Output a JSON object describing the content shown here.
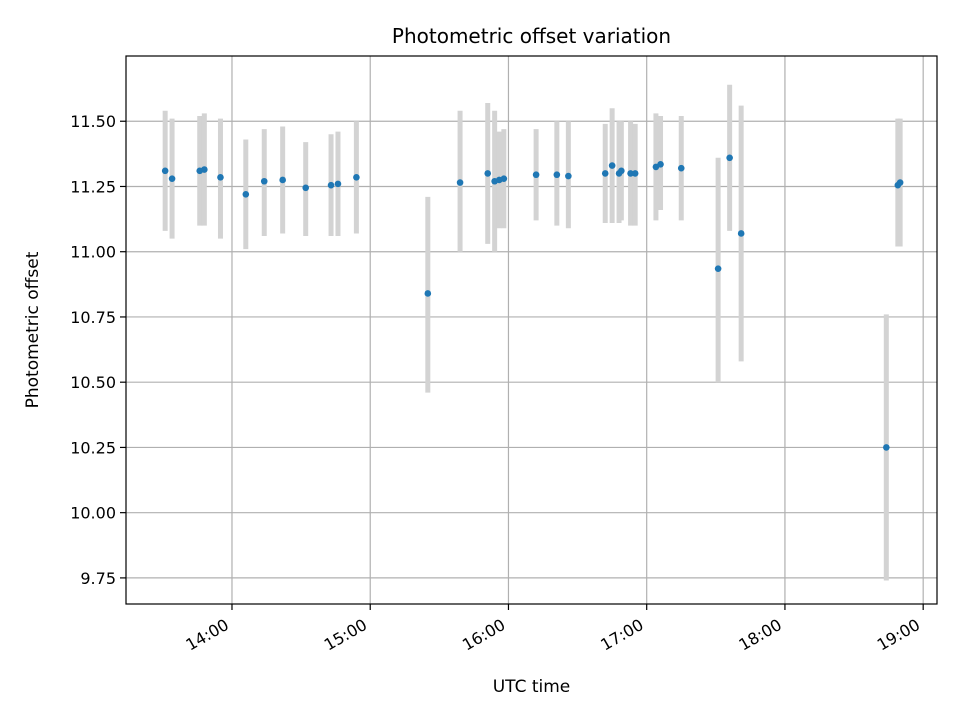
{
  "chart_data": {
    "type": "scatter",
    "title": "Photometric offset variation",
    "xlabel": "UTC time",
    "ylabel": "Photometric offset",
    "x_unit": "UTC hh:mm",
    "xlim": [
      "13:14",
      "19:06"
    ],
    "ylim": [
      9.65,
      11.75
    ],
    "xticks": [
      "14:00",
      "15:00",
      "16:00",
      "17:00",
      "18:00",
      "19:00"
    ],
    "yticks": [
      "9.75",
      "10.00",
      "10.25",
      "10.50",
      "10.75",
      "11.00",
      "11.25",
      "11.50"
    ],
    "grid": true,
    "legend": "none",
    "colors": {
      "point": "#1f77b4",
      "errorbar": "#d3d3d3",
      "grid": "#b0b0b0"
    },
    "points": [
      {
        "time": "13:31",
        "y": 11.31,
        "ylo": 11.08,
        "yhi": 11.54
      },
      {
        "time": "13:34",
        "y": 11.28,
        "ylo": 11.05,
        "yhi": 11.51
      },
      {
        "time": "13:46",
        "y": 11.31,
        "ylo": 11.1,
        "yhi": 11.52
      },
      {
        "time": "13:48",
        "y": 11.315,
        "ylo": 11.1,
        "yhi": 11.53
      },
      {
        "time": "13:55",
        "y": 11.285,
        "ylo": 11.05,
        "yhi": 11.51
      },
      {
        "time": "14:06",
        "y": 11.22,
        "ylo": 11.01,
        "yhi": 11.43
      },
      {
        "time": "14:14",
        "y": 11.27,
        "ylo": 11.06,
        "yhi": 11.47
      },
      {
        "time": "14:22",
        "y": 11.275,
        "ylo": 11.07,
        "yhi": 11.48
      },
      {
        "time": "14:32",
        "y": 11.245,
        "ylo": 11.06,
        "yhi": 11.42
      },
      {
        "time": "14:43",
        "y": 11.255,
        "ylo": 11.06,
        "yhi": 11.45
      },
      {
        "time": "14:46",
        "y": 11.26,
        "ylo": 11.06,
        "yhi": 11.46
      },
      {
        "time": "14:54",
        "y": 11.285,
        "ylo": 11.07,
        "yhi": 11.5
      },
      {
        "time": "15:25",
        "y": 10.84,
        "ylo": 10.46,
        "yhi": 11.21
      },
      {
        "time": "15:39",
        "y": 11.265,
        "ylo": 11.0,
        "yhi": 11.54
      },
      {
        "time": "15:51",
        "y": 11.3,
        "ylo": 11.03,
        "yhi": 11.57
      },
      {
        "time": "15:54",
        "y": 11.27,
        "ylo": 11.0,
        "yhi": 11.54
      },
      {
        "time": "15:56",
        "y": 11.275,
        "ylo": 11.09,
        "yhi": 11.46
      },
      {
        "time": "15:58",
        "y": 11.28,
        "ylo": 11.09,
        "yhi": 11.47
      },
      {
        "time": "16:12",
        "y": 11.295,
        "ylo": 11.12,
        "yhi": 11.47
      },
      {
        "time": "16:21",
        "y": 11.295,
        "ylo": 11.1,
        "yhi": 11.5
      },
      {
        "time": "16:26",
        "y": 11.29,
        "ylo": 11.09,
        "yhi": 11.5
      },
      {
        "time": "16:42",
        "y": 11.3,
        "ylo": 11.11,
        "yhi": 11.49
      },
      {
        "time": "16:45",
        "y": 11.33,
        "ylo": 11.11,
        "yhi": 11.55
      },
      {
        "time": "16:48",
        "y": 11.3,
        "ylo": 11.11,
        "yhi": 11.5
      },
      {
        "time": "16:49",
        "y": 11.31,
        "ylo": 11.12,
        "yhi": 11.5
      },
      {
        "time": "16:53",
        "y": 11.3,
        "ylo": 11.1,
        "yhi": 11.5
      },
      {
        "time": "16:55",
        "y": 11.3,
        "ylo": 11.1,
        "yhi": 11.49
      },
      {
        "time": "17:04",
        "y": 11.325,
        "ylo": 11.12,
        "yhi": 11.53
      },
      {
        "time": "17:06",
        "y": 11.335,
        "ylo": 11.16,
        "yhi": 11.52
      },
      {
        "time": "17:15",
        "y": 11.32,
        "ylo": 11.12,
        "yhi": 11.52
      },
      {
        "time": "17:31",
        "y": 10.935,
        "ylo": 10.5,
        "yhi": 11.36
      },
      {
        "time": "17:36",
        "y": 11.36,
        "ylo": 11.08,
        "yhi": 11.64
      },
      {
        "time": "17:41",
        "y": 11.07,
        "ylo": 10.58,
        "yhi": 11.56
      },
      {
        "time": "18:44",
        "y": 10.25,
        "ylo": 9.74,
        "yhi": 10.76
      },
      {
        "time": "18:49",
        "y": 11.255,
        "ylo": 11.02,
        "yhi": 11.51
      },
      {
        "time": "18:50",
        "y": 11.265,
        "ylo": 11.02,
        "yhi": 11.51
      }
    ]
  }
}
